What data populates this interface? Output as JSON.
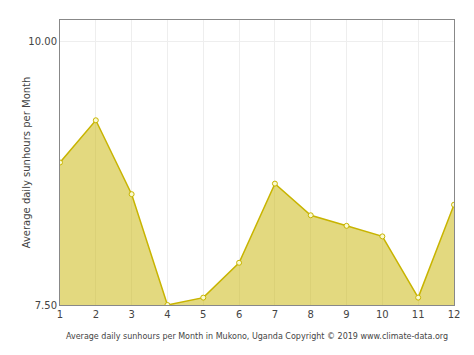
{
  "chart_data": {
    "type": "area",
    "x": [
      1,
      2,
      3,
      4,
      5,
      6,
      7,
      8,
      9,
      10,
      11,
      12
    ],
    "values": [
      8.85,
      9.25,
      8.55,
      7.5,
      7.57,
      7.9,
      8.65,
      8.35,
      8.25,
      8.15,
      7.57,
      8.45
    ],
    "color": "#c8b400",
    "marker": "circle",
    "xlabel": "Average daily sunhours per Month in Mukono, Uganda Copyright © 2019 www.climate-data.org",
    "ylabel": "Average daily sunhours per Month",
    "xlim": [
      1,
      12
    ],
    "ylim": [
      7.5,
      10.2
    ],
    "xticks": [
      1,
      2,
      3,
      4,
      5,
      6,
      7,
      8,
      9,
      10,
      11,
      12
    ],
    "yticks": [
      {
        "value": 7.5,
        "label": "7.50"
      },
      {
        "value": 10,
        "label": "10.00"
      }
    ],
    "grid": true
  }
}
